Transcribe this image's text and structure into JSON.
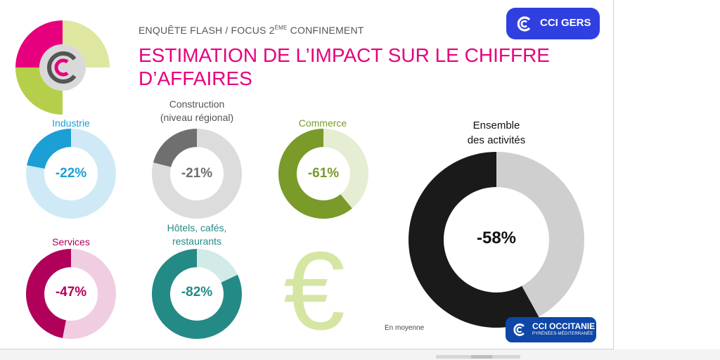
{
  "header": {
    "kicker": "ENQUÊTE FLASH / FOCUS 2",
    "kicker_sup": "ÈME",
    "kicker_end": " CONFINEMENT",
    "title": "ESTIMATION DE L’IMPACT SUR LE CHIFFRE D’AFFAIRES"
  },
  "brand": {
    "top_badge": "CCI GERS",
    "bottom_badge": "CCI OCCITANIE",
    "bottom_badge_sub": "PYRÉNÉES-MÉDITERRANÉE"
  },
  "note": "En moyenne",
  "colors": {
    "title": "#e6007e",
    "industrie": "#1b9fd5",
    "industrie_track": "#cfeaf6",
    "construction": "#6f6f6f",
    "construction_track": "#dcdcdc",
    "commerce": "#7a9a2a",
    "commerce_track": "#e5edd2",
    "services": "#b0005a",
    "services_track": "#f0cde0",
    "hotels": "#248a86",
    "hotels_track": "#d2eae8",
    "ensemble": "#1a1a1a",
    "ensemble_track": "#cfcfcf"
  },
  "chart_data": {
    "type": "pie",
    "title": "ESTIMATION DE L’IMPACT SUR LE CHIFFRE D’AFFAIRES",
    "subtype": "donut",
    "unit": "%",
    "series": [
      {
        "key": "industrie",
        "name": "Industrie",
        "value": -22,
        "label": "-22%"
      },
      {
        "key": "construction",
        "name": "Construction (niveau régional)",
        "name_line1": "Construction",
        "name_line2": "(niveau régional)",
        "value": -21,
        "label": "-21%"
      },
      {
        "key": "commerce",
        "name": "Commerce",
        "value": -61,
        "label": "-61%"
      },
      {
        "key": "services",
        "name": "Services",
        "value": -47,
        "label": "-47%"
      },
      {
        "key": "hotels",
        "name": "Hôtels, cafés, restaurants",
        "name_line1": "Hôtels, cafés,",
        "name_line2": "restaurants",
        "value": -82,
        "label": "-82%"
      },
      {
        "key": "ensemble",
        "name": "Ensemble des activités",
        "name_line1": "Ensemble",
        "name_line2": "des activités",
        "value": -58,
        "label": "-58%"
      }
    ]
  }
}
